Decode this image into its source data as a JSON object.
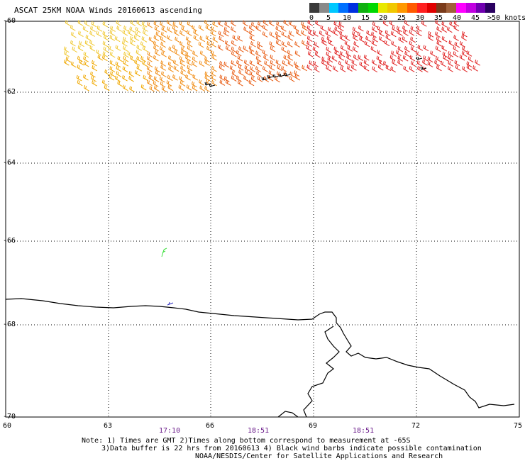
{
  "title": "ASCAT 25KM NOAA Winds 20160613 ascending",
  "colorbar": {
    "colors": [
      "#3a3a3a",
      "#8a8a8a",
      "#00c8ff",
      "#0070ff",
      "#0030e0",
      "#10b010",
      "#00d800",
      "#e8e800",
      "#f0c800",
      "#ff9800",
      "#ff5a00",
      "#ff2020",
      "#e00000",
      "#7a3a1a",
      "#a0603a",
      "#ff00ff",
      "#c000e0",
      "#7000b0",
      "#2a0060"
    ],
    "labels": [
      "0",
      "5",
      "10",
      "15",
      "20",
      "25",
      "30",
      "35",
      "40",
      "45",
      ">50 knots"
    ]
  },
  "lat_labels": [
    "-60",
    "-62",
    "-64",
    "-66",
    "-68",
    "-70"
  ],
  "lon_labels": [
    "60",
    "63",
    "66",
    "69",
    "72",
    "75"
  ],
  "times": [
    "17:10",
    "18:51",
    "18:51"
  ],
  "notes": [
    "Note: 1) Times are GMT 2)Times along bottom correspond to measurement at -65S",
    "3)Data buffer is 22 hrs from 20160613 4) Black wind barbs indicate possible contamination",
    "NOAA/NESDIS/Center for Satellite Applications and Research"
  ],
  "icons": {
    "wind_barbs": "wind-barb-icon",
    "coastline": "coastline"
  }
}
